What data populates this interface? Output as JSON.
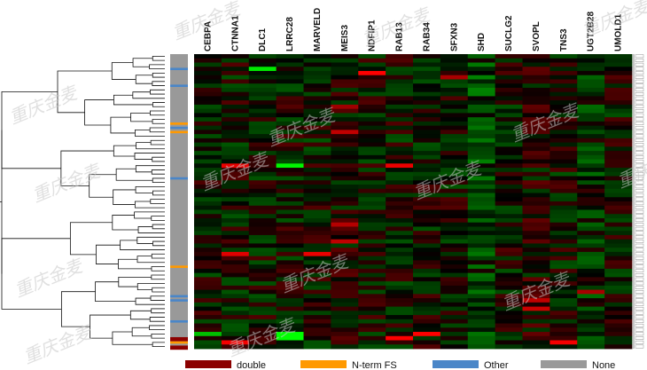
{
  "chart_data": {
    "type": "heatmap",
    "title": "",
    "columns": [
      "CEBPA",
      "CTNNA1",
      "DLC1",
      "LRRC28",
      "MARVELD",
      "MEIS3",
      "NDFIP1",
      "RAB13",
      "RAB34",
      "SFXN3",
      "SHD",
      "SUCLG2",
      "SVOPL",
      "TNS3",
      "UGT2B28",
      "UMOLD1"
    ],
    "row_count": 70,
    "value_range": [
      -1,
      1
    ],
    "color_scale": {
      "low": "#00ff00",
      "mid": "#000000",
      "high": "#ff0000"
    },
    "notable_cells": [
      {
        "row": 3,
        "col": 2,
        "value": -0.9
      },
      {
        "row": 4,
        "col": 6,
        "value": 1.0
      },
      {
        "row": 5,
        "col": 9,
        "value": 0.6
      },
      {
        "row": 12,
        "col": 5,
        "value": 0.55
      },
      {
        "row": 18,
        "col": 5,
        "value": 0.7
      },
      {
        "row": 26,
        "col": 1,
        "value": 0.9
      },
      {
        "row": 26,
        "col": 3,
        "value": -0.95
      },
      {
        "row": 26,
        "col": 7,
        "value": 0.9
      },
      {
        "row": 40,
        "col": 5,
        "value": 0.65
      },
      {
        "row": 44,
        "col": 5,
        "value": 0.7
      },
      {
        "row": 47,
        "col": 1,
        "value": 0.85
      },
      {
        "row": 47,
        "col": 4,
        "value": 0.9
      },
      {
        "row": 56,
        "col": 14,
        "value": 0.6
      },
      {
        "row": 58,
        "col": 12,
        "value": 0.7
      },
      {
        "row": 60,
        "col": 12,
        "value": 0.75
      },
      {
        "row": 66,
        "col": 0,
        "value": -0.7
      },
      {
        "row": 66,
        "col": 3,
        "value": -1.0
      },
      {
        "row": 66,
        "col": 8,
        "value": 1.0
      },
      {
        "row": 67,
        "col": 3,
        "value": -1.0
      },
      {
        "row": 67,
        "col": 7,
        "value": 1.0
      },
      {
        "row": 68,
        "col": 1,
        "value": 0.95
      },
      {
        "row": 68,
        "col": 13,
        "value": 0.95
      }
    ],
    "annotation_track": {
      "categories": [
        {
          "name": "double",
          "color": "#8b0000"
        },
        {
          "name": "N-term FS",
          "color": "#ff9900"
        },
        {
          "name": "Other",
          "color": "#4a86c8"
        },
        {
          "name": "None",
          "color": "#999999"
        }
      ],
      "marks": [
        {
          "row": 3,
          "category": "Other"
        },
        {
          "row": 7,
          "category": "Other"
        },
        {
          "row": 16,
          "category": "N-term FS"
        },
        {
          "row": 17,
          "category": "Other"
        },
        {
          "row": 18,
          "category": "N-term FS"
        },
        {
          "row": 29,
          "category": "Other"
        },
        {
          "row": 50,
          "category": "N-term FS"
        },
        {
          "row": 57,
          "category": "Other"
        },
        {
          "row": 58,
          "category": "Other"
        },
        {
          "row": 63,
          "category": "Other"
        },
        {
          "row": 67,
          "category": "double"
        },
        {
          "row": 68,
          "category": "N-term FS"
        },
        {
          "row": 69,
          "category": "double"
        }
      ]
    },
    "legend": {
      "placement": "bottom"
    }
  },
  "watermark": "重庆金麦"
}
